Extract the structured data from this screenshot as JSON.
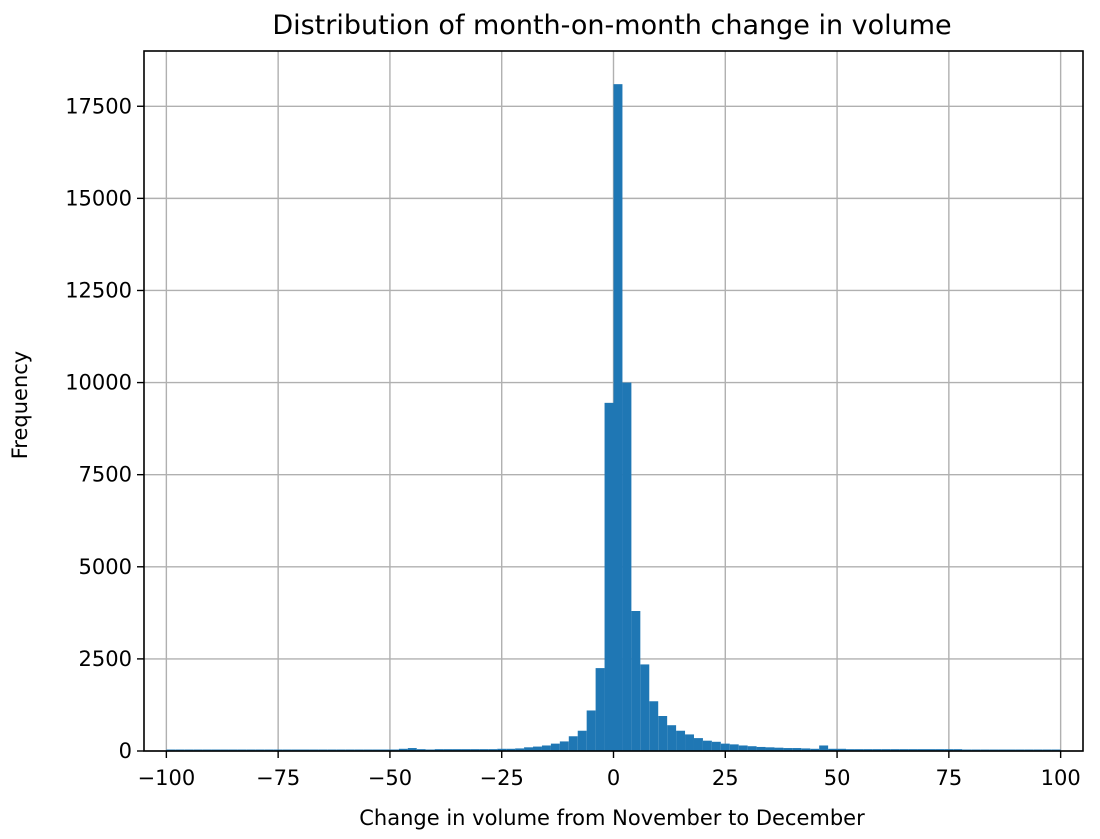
{
  "chart_data": {
    "type": "bar",
    "title": "Distribution of month-on-month change in volume",
    "xlabel": "Change in volume from November to December",
    "ylabel": "Frequency",
    "xlim": [
      -105,
      105
    ],
    "ylim": [
      0,
      19000
    ],
    "xticks": [
      -100,
      -75,
      -50,
      -25,
      0,
      25,
      50,
      75,
      100
    ],
    "xtick_labels": [
      "−100",
      "−75",
      "−50",
      "−25",
      "0",
      "25",
      "50",
      "75",
      "100"
    ],
    "yticks": [
      0,
      2500,
      5000,
      7500,
      10000,
      12500,
      15000,
      17500
    ],
    "ytick_labels": [
      "0",
      "2500",
      "5000",
      "7500",
      "10000",
      "12500",
      "15000",
      "17500"
    ],
    "grid": true,
    "color": "#1f77b4",
    "bin_edges": [
      -100,
      -98,
      -96,
      -94,
      -92,
      -90,
      -88,
      -86,
      -84,
      -82,
      -80,
      -78,
      -76,
      -74,
      -72,
      -70,
      -68,
      -66,
      -64,
      -62,
      -60,
      -58,
      -56,
      -54,
      -52,
      -50,
      -48,
      -46,
      -44,
      -42,
      -40,
      -38,
      -36,
      -34,
      -32,
      -30,
      -28,
      -26,
      -24,
      -22,
      -20,
      -18,
      -16,
      -14,
      -12,
      -10,
      -8,
      -6,
      -4,
      -2,
      0,
      2,
      4,
      6,
      8,
      10,
      12,
      14,
      16,
      18,
      20,
      22,
      24,
      26,
      28,
      30,
      32,
      34,
      36,
      38,
      40,
      42,
      44,
      46,
      48,
      50,
      52,
      54,
      56,
      58,
      60,
      62,
      64,
      66,
      68,
      70,
      72,
      74,
      76,
      78,
      80,
      82,
      84,
      86,
      88,
      90,
      92,
      94,
      96,
      98,
      100
    ],
    "values": [
      40,
      40,
      40,
      40,
      40,
      40,
      40,
      40,
      40,
      40,
      40,
      40,
      40,
      40,
      40,
      40,
      40,
      40,
      40,
      40,
      40,
      40,
      40,
      40,
      40,
      40,
      60,
      80,
      50,
      40,
      50,
      50,
      50,
      50,
      50,
      50,
      50,
      60,
      60,
      70,
      100,
      120,
      150,
      200,
      260,
      400,
      550,
      1100,
      2250,
      9450,
      18100,
      10000,
      3800,
      2350,
      1350,
      950,
      700,
      550,
      450,
      350,
      280,
      250,
      200,
      180,
      150,
      130,
      110,
      100,
      90,
      80,
      80,
      70,
      60,
      150,
      60,
      60,
      50,
      50,
      50,
      50,
      50,
      50,
      50,
      50,
      50,
      50,
      50,
      50,
      50,
      40,
      40,
      40,
      40,
      40,
      40,
      40,
      40,
      40,
      40,
      40
    ]
  }
}
